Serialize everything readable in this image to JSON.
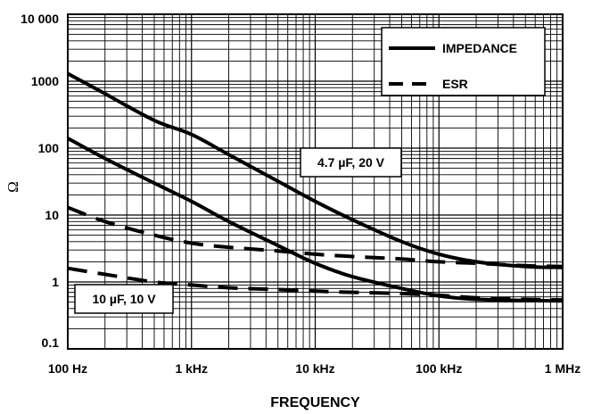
{
  "chart_data": {
    "type": "line",
    "title": "",
    "xlabel": "FREQUENCY",
    "ylabel": "Ω",
    "xscale": "log",
    "yscale": "log",
    "xlim": [
      100,
      1000000
    ],
    "ylim": [
      0.1,
      10000
    ],
    "grid": true,
    "legend_placement": "top-right",
    "x_ticks": [
      {
        "value": 100,
        "label": "100 Hz"
      },
      {
        "value": 1000,
        "label": "1 kHz"
      },
      {
        "value": 10000,
        "label": "10 kHz"
      },
      {
        "value": 100000,
        "label": "100 kHz"
      },
      {
        "value": 1000000,
        "label": "1 MHz"
      }
    ],
    "y_ticks": [
      {
        "value": 0.1,
        "label": "0.1"
      },
      {
        "value": 1,
        "label": "1"
      },
      {
        "value": 10,
        "label": "10"
      },
      {
        "value": 100,
        "label": "100"
      },
      {
        "value": 1000,
        "label": "1000"
      },
      {
        "value": 10000,
        "label": "10 000"
      }
    ],
    "legend": [
      {
        "label": "IMPEDANCE",
        "style": "solid"
      },
      {
        "label": "ESR",
        "style": "dashed"
      }
    ],
    "annotations": [
      {
        "text": "4.7 µF, 20 V"
      },
      {
        "text": "10 µF, 10 V"
      }
    ],
    "series": [
      {
        "group": "4.7 µF, 20 V",
        "kind": "IMPEDANCE",
        "style": "solid",
        "points": [
          [
            100,
            1300
          ],
          [
            200,
            650
          ],
          [
            500,
            260
          ],
          [
            1000,
            160
          ],
          [
            2000,
            80
          ],
          [
            5000,
            32
          ],
          [
            10000,
            16
          ],
          [
            20000,
            8.5
          ],
          [
            50000,
            4
          ],
          [
            100000,
            2.6
          ],
          [
            200000,
            2
          ],
          [
            500000,
            1.7
          ],
          [
            1000000,
            1.65
          ]
        ]
      },
      {
        "group": "4.7 µF, 20 V",
        "kind": "ESR",
        "style": "dashed",
        "points": [
          [
            100,
            13
          ],
          [
            200,
            8
          ],
          [
            500,
            5
          ],
          [
            1000,
            3.8
          ],
          [
            2000,
            3.3
          ],
          [
            5000,
            2.9
          ],
          [
            10000,
            2.6
          ],
          [
            20000,
            2.4
          ],
          [
            50000,
            2.2
          ],
          [
            100000,
            2.0
          ],
          [
            200000,
            1.9
          ],
          [
            500000,
            1.75
          ],
          [
            1000000,
            1.7
          ]
        ]
      },
      {
        "group": "10 µF, 10 V",
        "kind": "IMPEDANCE",
        "style": "solid",
        "points": [
          [
            100,
            140
          ],
          [
            200,
            70
          ],
          [
            500,
            30
          ],
          [
            1000,
            16
          ],
          [
            2000,
            8
          ],
          [
            5000,
            3.5
          ],
          [
            10000,
            1.9
          ],
          [
            20000,
            1.2
          ],
          [
            50000,
            0.8
          ],
          [
            100000,
            0.62
          ],
          [
            200000,
            0.55
          ],
          [
            500000,
            0.53
          ],
          [
            1000000,
            0.52
          ]
        ]
      },
      {
        "group": "10 µF, 10 V",
        "kind": "ESR",
        "style": "dashed",
        "points": [
          [
            100,
            1.6
          ],
          [
            200,
            1.3
          ],
          [
            500,
            1.0
          ],
          [
            1000,
            0.9
          ],
          [
            2000,
            0.82
          ],
          [
            5000,
            0.77
          ],
          [
            10000,
            0.73
          ],
          [
            20000,
            0.7
          ],
          [
            50000,
            0.67
          ],
          [
            100000,
            0.63
          ],
          [
            200000,
            0.58
          ],
          [
            500000,
            0.55
          ],
          [
            1000000,
            0.54
          ]
        ]
      }
    ]
  }
}
